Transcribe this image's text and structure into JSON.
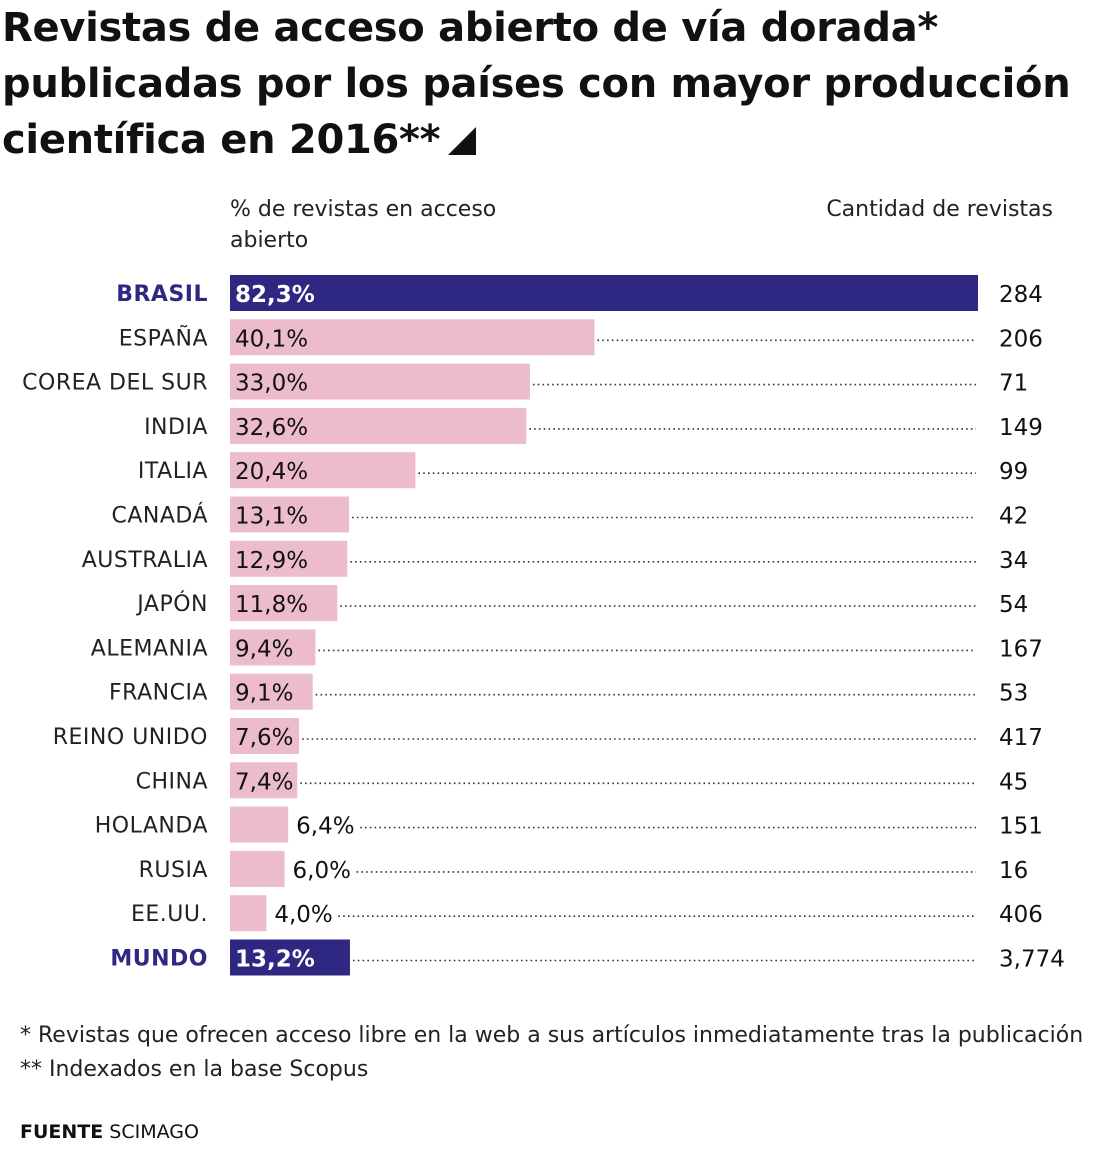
{
  "title": "Revistas de acceso abierto de vía dorada* publicadas por los países con mayor producción científica en 2016**",
  "header_left": "% de revistas en acceso abierto",
  "header_right": "Cantidad de revistas",
  "notes": [
    "* Revistas que ofrecen acceso libre en la web a sus artículos inmediatamente tras la publicación",
    "** Indexados en la base Scopus"
  ],
  "source_label": "FUENTE",
  "source_value": "SCIMAGO",
  "colors": {
    "highlight": "#2e2882",
    "normal": "#ecbccb",
    "text": "#111111"
  },
  "chart_data": {
    "type": "bar",
    "orientation": "horizontal",
    "categories": [
      "BRASIL",
      "ESPAÑA",
      "COREA DEL SUR",
      "INDIA",
      "ITALIA",
      "CANADÁ",
      "AUSTRALIA",
      "JAPÓN",
      "ALEMANIA",
      "FRANCIA",
      "REINO UNIDO",
      "CHINA",
      "HOLANDA",
      "RUSIA",
      "EE.UU.",
      "MUNDO"
    ],
    "values": [
      82.3,
      40.1,
      33.0,
      32.6,
      20.4,
      13.1,
      12.9,
      11.8,
      9.4,
      9.1,
      7.6,
      7.4,
      6.4,
      6.0,
      4.0,
      13.2
    ],
    "value_labels": [
      "82,3%",
      "40,1%",
      "33,0%",
      "32,6%",
      "20,4%",
      "13,1%",
      "12,9%",
      "11,8%",
      "9,4%",
      "9,1%",
      "7,6%",
      "7,4%",
      "6,4%",
      "6,0%",
      "4,0%",
      "13,2%"
    ],
    "counts": [
      "284",
      "206",
      "71",
      "149",
      "99",
      "42",
      "34",
      "54",
      "167",
      "53",
      "417",
      "45",
      "151",
      "16",
      "406",
      "3,774"
    ],
    "highlighted": [
      "BRASIL",
      "MUNDO"
    ],
    "xlim": [
      0,
      82.3
    ],
    "grid": false
  }
}
